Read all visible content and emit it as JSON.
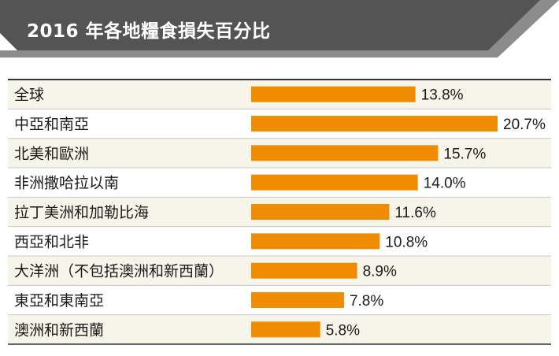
{
  "chart_data": {
    "type": "bar",
    "orientation": "horizontal",
    "title": "2016 年各地糧食損失百分比",
    "categories": [
      "全球",
      "中亞和南亞",
      "北美和歐洲",
      "非洲撒哈拉以南",
      "拉丁美洲和加勒比海",
      "西亞和北非",
      "大洋洲（不包括澳洲和新西蘭）",
      "東亞和東南亞",
      "澳洲和新西蘭"
    ],
    "values": [
      13.8,
      20.7,
      15.7,
      14.0,
      11.6,
      10.8,
      8.9,
      7.8,
      5.8
    ],
    "value_labels": [
      "13.8%",
      "20.7%",
      "15.7%",
      "14.0%",
      "11.6%",
      "10.8%",
      "8.9%",
      "7.8%",
      "5.8%"
    ],
    "unit": "%",
    "xlim": [
      0,
      20.7
    ],
    "grid": false,
    "legend": "none"
  },
  "colors": {
    "bar": "#f08c00",
    "banner_dark": "#545454",
    "banner_light": "#8c8c8c",
    "row_even": "#f7f5ea",
    "row_odd": "#ffffff",
    "divider": "#c8c8c8",
    "frame": "#333333"
  }
}
